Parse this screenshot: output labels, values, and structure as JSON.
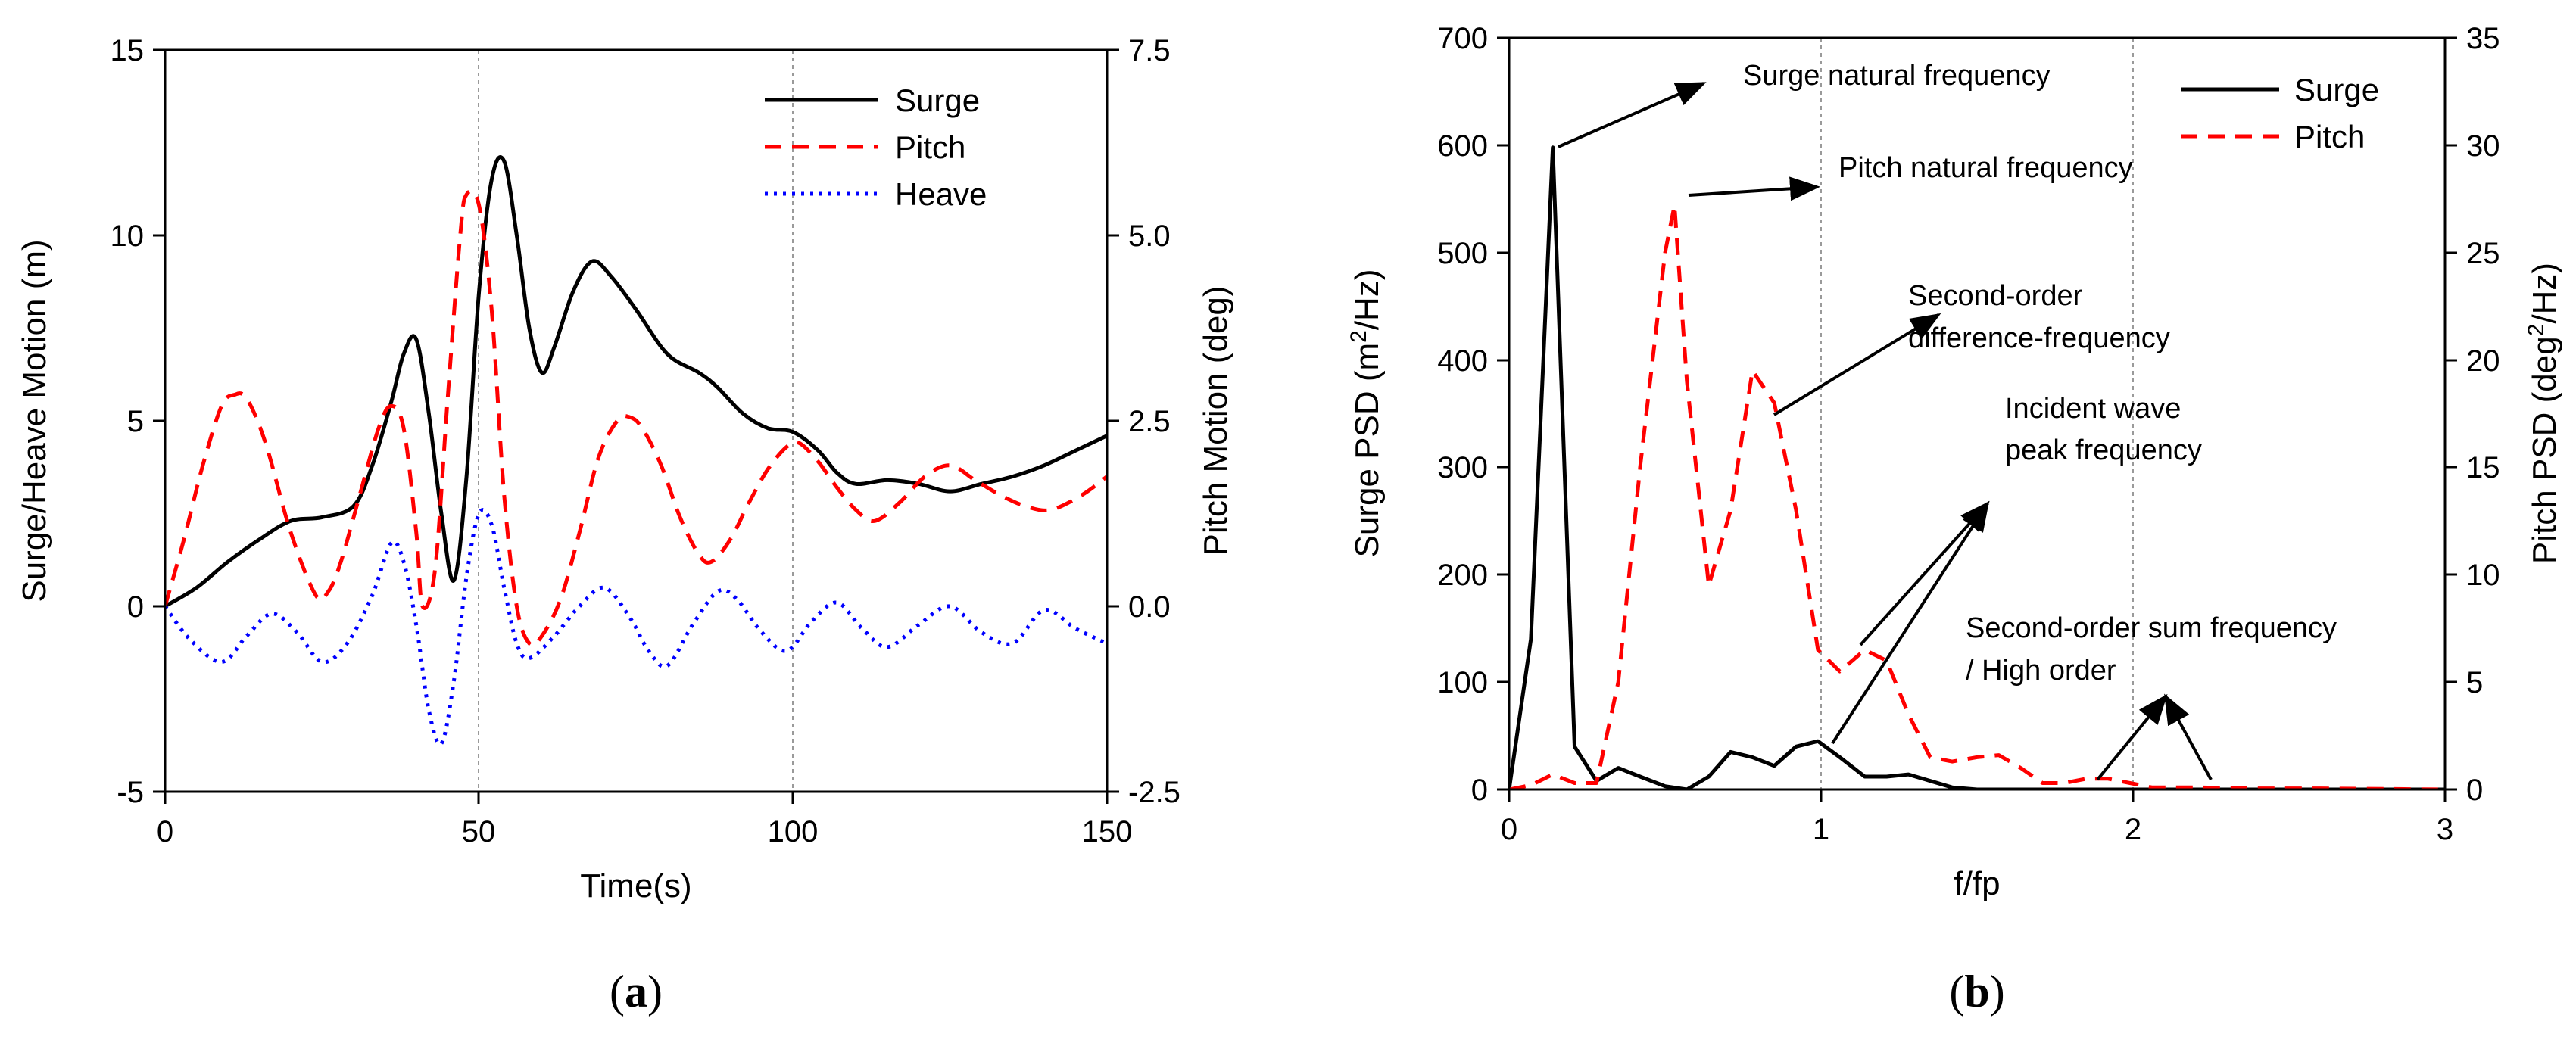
{
  "chart_data": [
    {
      "panel": "a",
      "type": "line",
      "caption_open": "(",
      "caption_letter": "a",
      "caption_close": ")",
      "xlabel": "Time(s)",
      "ylabel_left": "Surge/Heave Motion (m)",
      "ylabel_right": "Pitch Motion (deg)",
      "xlim": [
        0,
        150
      ],
      "ylim_left": [
        -5,
        15
      ],
      "ylim_right": [
        -2.5,
        7.5
      ],
      "x_ticks": [
        "0",
        "50",
        "100",
        "150"
      ],
      "y_ticks_left": [
        "-5",
        "0",
        "5",
        "10",
        "15"
      ],
      "y_ticks_right": [
        "-2.5",
        "0.0",
        "2.5",
        "5.0",
        "7.5"
      ],
      "vgrid": [
        50,
        100
      ],
      "legend": [
        "Surge",
        "Pitch",
        "Heave"
      ],
      "series": [
        {
          "name": "Surge",
          "axis": "left",
          "color": "#000000",
          "style": "solid",
          "x": [
            0,
            5,
            10,
            15,
            20,
            25,
            30,
            33,
            36,
            38,
            40,
            42,
            44,
            46,
            48,
            50,
            52,
            54,
            56,
            58,
            60,
            62,
            65,
            68,
            71,
            75,
            80,
            85,
            88,
            92,
            96,
            100,
            104,
            107,
            110,
            115,
            120,
            125,
            130,
            135,
            140,
            145,
            150
          ],
          "values": [
            0,
            0.5,
            1.2,
            1.8,
            2.3,
            2.4,
            2.7,
            3.8,
            5.5,
            6.8,
            7.2,
            5.2,
            2.5,
            0.7,
            3.5,
            8.5,
            11.5,
            12.0,
            10.0,
            7.5,
            6.3,
            7.0,
            8.5,
            9.3,
            8.9,
            8.0,
            6.8,
            6.3,
            5.9,
            5.2,
            4.8,
            4.7,
            4.2,
            3.6,
            3.3,
            3.4,
            3.3,
            3.1,
            3.3,
            3.5,
            3.8,
            4.2,
            4.6
          ]
        },
        {
          "name": "Pitch",
          "axis": "right",
          "color": "#ff0000",
          "style": "dashed",
          "x": [
            0,
            3,
            6,
            9,
            11,
            13,
            16,
            20,
            24,
            26,
            28,
            31,
            34,
            36,
            38,
            40,
            41,
            43,
            45,
            47,
            48,
            50,
            52,
            54,
            56,
            58,
            60,
            63,
            66,
            69,
            72,
            74,
            76,
            79,
            82,
            85,
            87,
            90,
            93,
            96,
            99,
            101,
            104,
            107,
            110,
            113,
            117,
            121,
            125,
            129,
            133,
            137,
            141,
            146,
            150
          ],
          "values": [
            0,
            0.9,
            1.9,
            2.7,
            2.85,
            2.8,
            2.2,
            1.0,
            0.15,
            0.2,
            0.6,
            1.5,
            2.4,
            2.7,
            2.4,
            1.0,
            0.0,
            0.5,
            2.8,
            5.0,
            5.55,
            5.4,
            4.0,
            1.5,
            0.0,
            -0.5,
            -0.4,
            0.1,
            1.0,
            2.0,
            2.5,
            2.55,
            2.4,
            1.9,
            1.2,
            0.7,
            0.6,
            0.9,
            1.4,
            1.85,
            2.15,
            2.2,
            1.95,
            1.6,
            1.3,
            1.15,
            1.4,
            1.75,
            1.9,
            1.7,
            1.5,
            1.35,
            1.3,
            1.5,
            1.75
          ]
        },
        {
          "name": "Heave",
          "axis": "left",
          "color": "#0000ff",
          "style": "dotted",
          "x": [
            0,
            4,
            9,
            13,
            17,
            21,
            25,
            29,
            33,
            36,
            38,
            40,
            42,
            44,
            46,
            48,
            50,
            52,
            54,
            56,
            58,
            62,
            66,
            70,
            74,
            77,
            80,
            84,
            88,
            91,
            95,
            99,
            103,
            107,
            111,
            115,
            120,
            125,
            130,
            135,
            140,
            145,
            150
          ],
          "values": [
            0,
            -0.9,
            -1.5,
            -0.8,
            -0.2,
            -0.7,
            -1.5,
            -1.0,
            0.3,
            1.7,
            1.2,
            -0.5,
            -2.8,
            -3.7,
            -2.0,
            0.8,
            2.5,
            2.2,
            0.5,
            -1.0,
            -1.4,
            -0.8,
            0.0,
            0.5,
            -0.3,
            -1.2,
            -1.6,
            -0.5,
            0.4,
            0.2,
            -0.7,
            -1.2,
            -0.4,
            0.1,
            -0.6,
            -1.1,
            -0.5,
            0.0,
            -0.7,
            -1.0,
            -0.1,
            -0.6,
            -1.0
          ]
        }
      ]
    },
    {
      "panel": "b",
      "type": "line",
      "caption_open": "(",
      "caption_letter": "b",
      "caption_close": ")",
      "xlabel": "f/fp",
      "ylabel_left_main": "Surge PSD (m",
      "ylabel_left_sup": "2",
      "ylabel_left_tail": "/Hz)",
      "ylabel_right_main": "Pitch PSD (deg",
      "ylabel_right_sup": "2",
      "ylabel_right_tail": "/Hz)",
      "xlim": [
        0,
        3
      ],
      "ylim_left": [
        0,
        700
      ],
      "ylim_right": [
        0,
        35
      ],
      "x_ticks": [
        "0",
        "1",
        "2",
        "3"
      ],
      "y_ticks_left": [
        "0",
        "100",
        "200",
        "300",
        "400",
        "500",
        "600",
        "700"
      ],
      "y_ticks_right": [
        "0",
        "5",
        "10",
        "15",
        "20",
        "25",
        "30",
        "35"
      ],
      "vgrid": [
        1,
        2
      ],
      "legend": [
        "Surge",
        "Pitch"
      ],
      "annotations": [
        "Surge natural frequency",
        "Pitch natural frequency",
        "Second-order",
        "difference-frequency",
        "Incident wave",
        "peak frequency",
        "Second-order sum frequency",
        "/ High order"
      ],
      "series": [
        {
          "name": "Surge",
          "axis": "left",
          "color": "#000000",
          "style": "solid",
          "x": [
            0,
            0.07,
            0.14,
            0.21,
            0.28,
            0.35,
            0.42,
            0.5,
            0.57,
            0.64,
            0.71,
            0.78,
            0.85,
            0.92,
            0.99,
            1.06,
            1.14,
            1.21,
            1.28,
            1.35,
            1.42,
            1.5,
            1.6,
            1.8,
            2.0,
            2.2,
            2.4,
            2.6,
            3.0
          ],
          "values": [
            0,
            140,
            598,
            40,
            8,
            20,
            12,
            3,
            0,
            12,
            35,
            30,
            22,
            40,
            45,
            30,
            12,
            12,
            14,
            8,
            2,
            0,
            0,
            0,
            0,
            0,
            0,
            0,
            0
          ]
        },
        {
          "name": "Pitch",
          "axis": "right",
          "color": "#ff0000",
          "style": "dashed",
          "x": [
            0,
            0.07,
            0.14,
            0.21,
            0.28,
            0.35,
            0.42,
            0.5,
            0.53,
            0.57,
            0.64,
            0.71,
            0.78,
            0.85,
            0.92,
            0.99,
            1.06,
            1.14,
            1.21,
            1.28,
            1.35,
            1.42,
            1.5,
            1.57,
            1.64,
            1.71,
            1.78,
            1.85,
            1.92,
            1.99,
            2.06,
            2.13,
            2.2,
            2.4,
            2.6,
            3.0
          ],
          "values": [
            0,
            0.2,
            0.7,
            0.3,
            0.3,
            5,
            15,
            25,
            27.2,
            19,
            9.5,
            13,
            19.5,
            18,
            13,
            6.5,
            5.5,
            6.5,
            6,
            3.5,
            1.5,
            1.3,
            1.5,
            1.6,
            1,
            0.3,
            0.3,
            0.5,
            0.5,
            0.3,
            0.1,
            0.1,
            0.1,
            0.05,
            0.05,
            0
          ]
        }
      ]
    }
  ]
}
